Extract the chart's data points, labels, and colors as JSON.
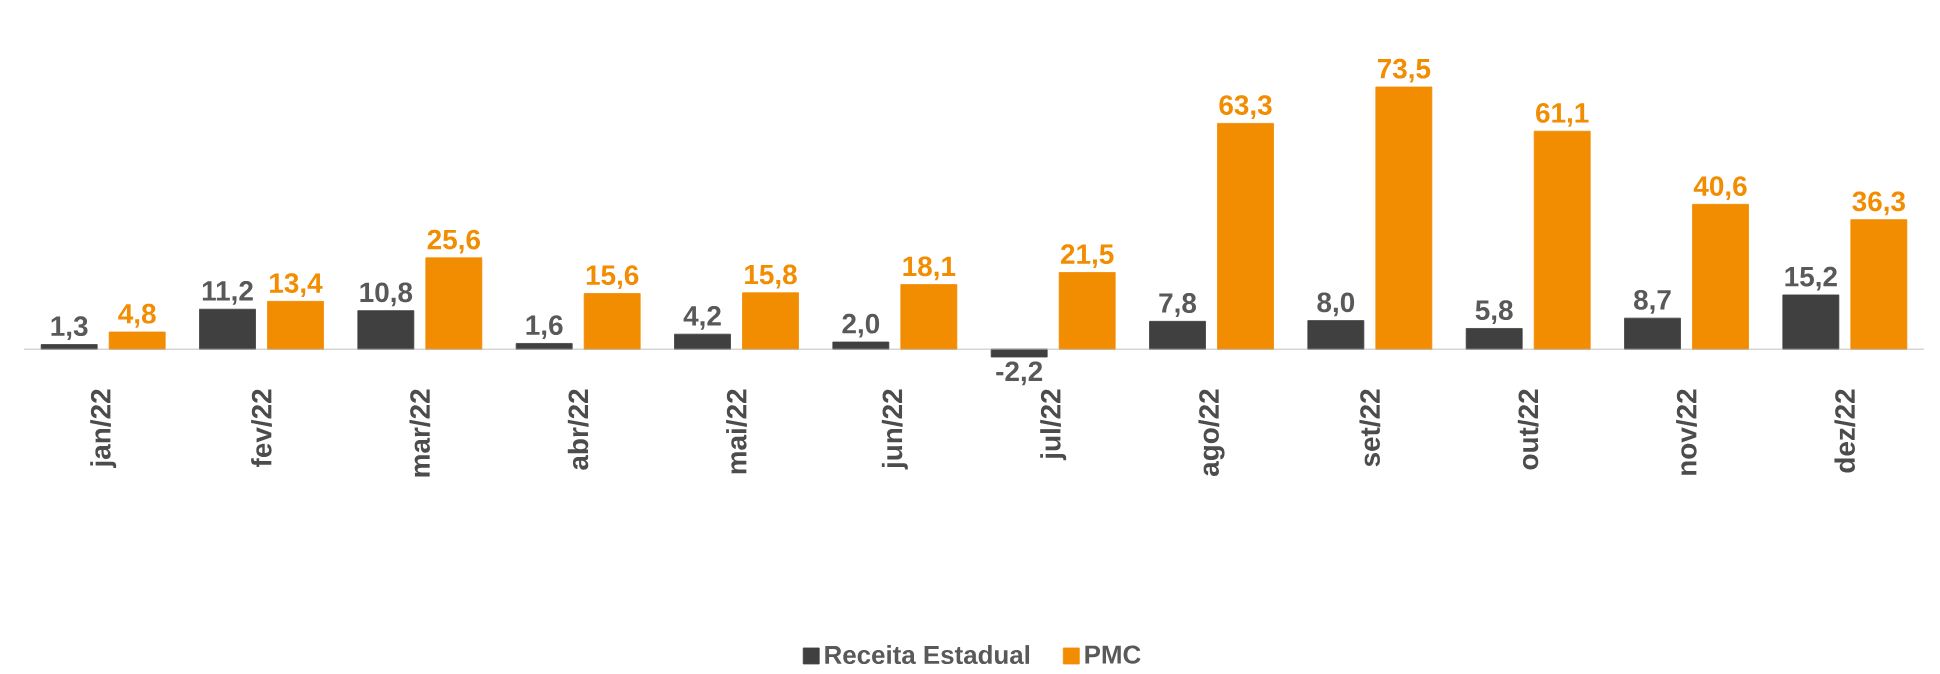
{
  "chart_data": {
    "type": "bar",
    "categories": [
      "jan/22",
      "fev/22",
      "mar/22",
      "abr/22",
      "mai/22",
      "jun/22",
      "jul/22",
      "ago/22",
      "set/22",
      "out/22",
      "nov/22",
      "dez/22"
    ],
    "series": [
      {
        "name": "Receita Estadual",
        "color": "#404040",
        "values": [
          1.3,
          11.2,
          10.8,
          1.6,
          4.2,
          2.0,
          -2.2,
          7.8,
          8.0,
          5.8,
          8.7,
          15.2
        ],
        "value_labels": [
          "1,3",
          "11,2",
          "10,8",
          "1,6",
          "4,2",
          "2,0",
          "-2,2",
          "7,8",
          "8,0",
          "5,8",
          "8,7",
          "15,2"
        ]
      },
      {
        "name": "PMC",
        "color": "#f28c00",
        "values": [
          4.8,
          13.4,
          25.6,
          15.6,
          15.8,
          18.1,
          21.5,
          63.3,
          73.5,
          61.1,
          40.6,
          36.3
        ],
        "value_labels": [
          "4,8",
          "13,4",
          "25,6",
          "15,6",
          "15,8",
          "18,1",
          "21,5",
          "63,3",
          "73,5",
          "61,1",
          "40,6",
          "36,3"
        ]
      }
    ],
    "legend": "bottom"
  }
}
